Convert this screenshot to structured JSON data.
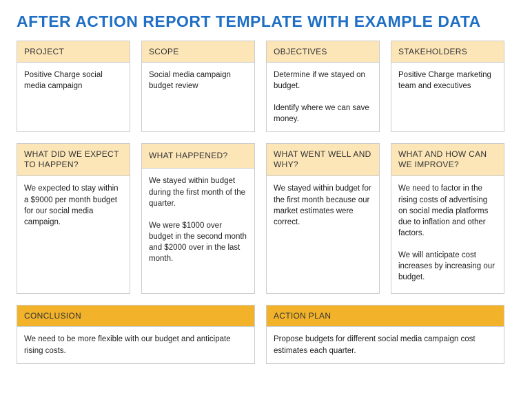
{
  "colors": {
    "title": "#1f6fc5",
    "header_bg_light": "#fce6b8",
    "header_bg_dark": "#f2b32a",
    "header_text": "#333333",
    "border": "#cccccc",
    "body_text": "#222222",
    "background": "#ffffff"
  },
  "title": "AFTER ACTION REPORT TEMPLATE WITH EXAMPLE DATA",
  "row1": [
    {
      "header": "PROJECT",
      "body": "Positive Charge social media  campaign"
    },
    {
      "header": "SCOPE",
      "body": "Social media campaign budget review"
    },
    {
      "header": "OBJECTIVES",
      "body": "Determine if we stayed on budget.\n\nIdentify where we can save money."
    },
    {
      "header": "STAKEHOLDERS",
      "body": "Positive Charge marketing team and executives"
    }
  ],
  "row2": [
    {
      "header": "WHAT DID WE EXPECT TO HAPPEN?",
      "body": "We expected to stay within a $9000 per month budget for our social media campaign."
    },
    {
      "header": "WHAT HAPPENED?",
      "body": "We stayed within budget during the first month of the quarter.\n\nWe were $1000 over budget in the second month and $2000 over in the last month."
    },
    {
      "header": "WHAT WENT WELL AND WHY?",
      "body": "We stayed within budget for the first month because our market estimates were correct."
    },
    {
      "header": "WHAT AND HOW CAN WE IMPROVE?",
      "body": "We need to factor in the rising costs of advertising on social media platforms due to inflation and other factors.\n\nWe will anticipate cost increases by increasing our budget."
    }
  ],
  "row3": [
    {
      "header": "CONCLUSION",
      "body": "We need to be more flexible with our budget and anticipate rising costs."
    },
    {
      "header": "ACTION PLAN",
      "body": "Propose budgets for different social media campaign cost estimates each quarter."
    }
  ]
}
